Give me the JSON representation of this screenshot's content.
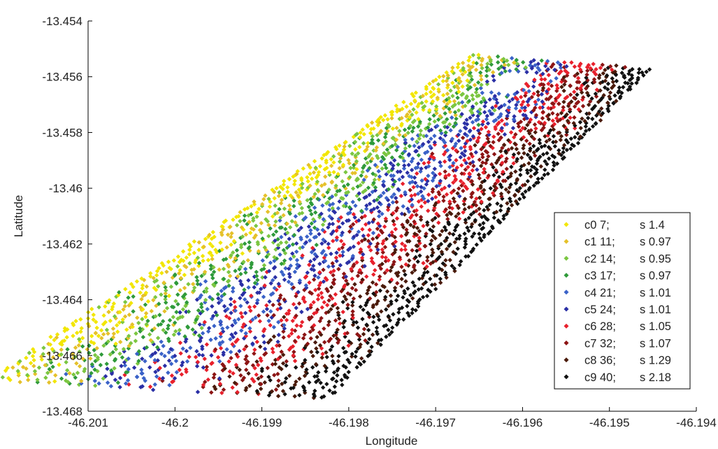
{
  "chart_data": {
    "type": "scatter",
    "xlabel": "Longitude",
    "ylabel": "Latitude",
    "xlim": [
      -46.201,
      -46.194
    ],
    "ylim": [
      -13.468,
      -13.454
    ],
    "x_ticks": [
      "-46.201",
      "-46.2",
      "-46.199",
      "-46.198",
      "-46.197",
      "-46.196",
      "-46.195",
      "-46.194"
    ],
    "y_ticks": [
      "-13.454",
      "-13.456",
      "-13.458",
      "-13.46",
      "-13.462",
      "-13.464",
      "-13.466",
      "-13.468"
    ],
    "grid": false,
    "legend_position": "right",
    "marker": "diamond",
    "swath": {
      "bottom_left": [
        -46.2022,
        -13.4669
      ],
      "bottom_right": [
        -46.1982,
        -13.4676
      ],
      "top_left": [
        -46.1966,
        -13.4552
      ],
      "top_right": [
        -46.1945,
        -13.4557
      ]
    },
    "series": [
      {
        "label": "c0 7;",
        "stat": "s 1.4",
        "color": "#f2e600",
        "band": [
          0.0,
          0.16
        ]
      },
      {
        "label": "c1 11;",
        "stat": "s 0.97",
        "color": "#e5c12a",
        "band": [
          0.05,
          0.24
        ]
      },
      {
        "label": "c2 14;",
        "stat": "s 0.95",
        "color": "#7bc641",
        "band": [
          0.1,
          0.34
        ]
      },
      {
        "label": "c3 17;",
        "stat": "s 0.97",
        "color": "#2f9a3a",
        "band": [
          0.14,
          0.38
        ]
      },
      {
        "label": "c4 21;",
        "stat": "s 1.01",
        "color": "#3a62c8",
        "band": [
          0.3,
          0.56
        ]
      },
      {
        "label": "c5 24;",
        "stat": "s 1.01",
        "color": "#2a2fa5",
        "band": [
          0.34,
          0.62
        ]
      },
      {
        "label": "c6 28;",
        "stat": "s 1.05",
        "color": "#e8202c",
        "band": [
          0.44,
          0.8
        ]
      },
      {
        "label": "c7 32;",
        "stat": "s 1.07",
        "color": "#8c1414",
        "band": [
          0.55,
          0.84
        ]
      },
      {
        "label": "c8 36;",
        "stat": "s 1.29",
        "color": "#4a1a0a",
        "band": [
          0.66,
          0.92
        ]
      },
      {
        "label": "c9 40;",
        "stat": "s 2.18",
        "color": "#111111",
        "band": [
          0.8,
          1.0
        ]
      }
    ]
  }
}
